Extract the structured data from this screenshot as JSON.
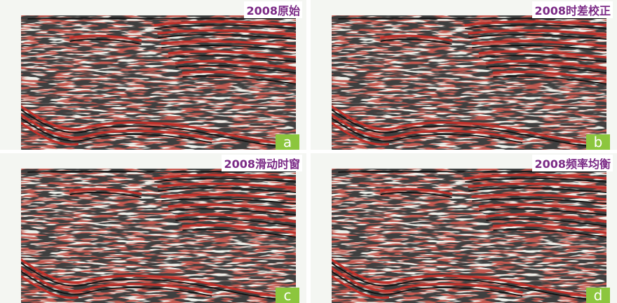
{
  "panels": [
    {
      "title": "2008原始",
      "letter": "a"
    },
    {
      "title": "2008时差校正",
      "letter": "b"
    },
    {
      "title": "2008滑动时窗",
      "letter": "c"
    },
    {
      "title": "2008频率均衡",
      "letter": "d"
    }
  ]
}
